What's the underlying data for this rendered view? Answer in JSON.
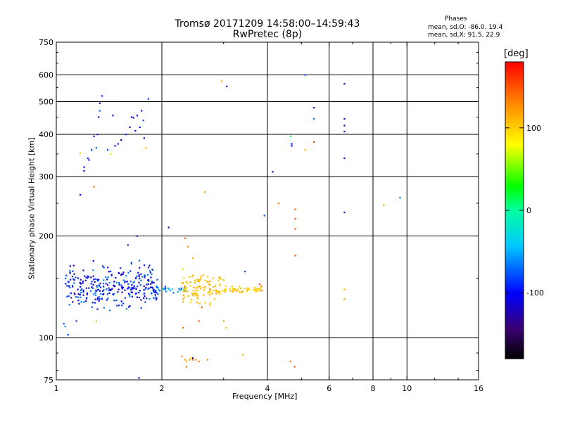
{
  "header": {
    "title_line1": "Tromsø 20171209 14:58:00–14:59:43",
    "title_line2": "RwPretec (8p)",
    "phase_title": "Phases",
    "phase_stat_1": "mean, sd,O: -86.0, 19.4",
    "phase_stat_2": "mean, sd,X:  91.5, 22.9"
  },
  "colorbar": {
    "label": "[deg]",
    "range": [
      -180,
      180
    ],
    "tick_values": [
      100,
      0,
      -100
    ],
    "tick_labels": [
      "100",
      "0",
      "-100"
    ]
  },
  "chart_data": {
    "type": "scatter",
    "title": "Tromsø 20171209 14:58:00–14:59:43",
    "subtitle": "RwPretec (8p)",
    "xlabel": "Frequency [MHz]",
    "ylabel": "Stationary phase Virtual Height [km]",
    "x_scale": "log",
    "y_scale": "log",
    "xlim": [
      1,
      16
    ],
    "ylim": [
      75,
      750
    ],
    "x_ticks": [
      1,
      2,
      4,
      6,
      8,
      10,
      16
    ],
    "x_tick_labels": [
      "1",
      "2",
      "4",
      "6",
      "8",
      "10",
      "16"
    ],
    "y_ticks": [
      75,
      100,
      200,
      300,
      400,
      500,
      600,
      750
    ],
    "y_tick_labels": [
      "75",
      "100",
      "200",
      "300",
      "400",
      "500",
      "600",
      "750"
    ],
    "grid_x": [
      2,
      4,
      6,
      8,
      10
    ],
    "grid_y": [
      100,
      200,
      300,
      400,
      500,
      600
    ],
    "legend": "colorbar-right",
    "colorscale": "rainbow",
    "points": [
      {
        "x": 1.08,
        "y": 102,
        "phase": -80
      },
      {
        "x": 1.06,
        "y": 108,
        "phase": -60
      },
      {
        "x": 1.05,
        "y": 110,
        "phase": -80
      },
      {
        "x": 1.14,
        "y": 112,
        "phase": -90
      },
      {
        "x": 1.3,
        "y": 112,
        "phase": 110
      },
      {
        "x": 1.17,
        "y": 265,
        "phase": -100
      },
      {
        "x": 1.28,
        "y": 280,
        "phase": 140
      },
      {
        "x": 1.17,
        "y": 352,
        "phase": 100
      },
      {
        "x": 1.2,
        "y": 320,
        "phase": -100
      },
      {
        "x": 1.2,
        "y": 312,
        "phase": -110
      },
      {
        "x": 1.23,
        "y": 340,
        "phase": -90
      },
      {
        "x": 1.24,
        "y": 336,
        "phase": -100
      },
      {
        "x": 1.26,
        "y": 360,
        "phase": -85
      },
      {
        "x": 1.28,
        "y": 395,
        "phase": -110
      },
      {
        "x": 1.3,
        "y": 365,
        "phase": -75
      },
      {
        "x": 1.31,
        "y": 400,
        "phase": -100
      },
      {
        "x": 1.32,
        "y": 450,
        "phase": -100
      },
      {
        "x": 1.33,
        "y": 470,
        "phase": -70
      },
      {
        "x": 1.33,
        "y": 495,
        "phase": -110
      },
      {
        "x": 1.35,
        "y": 520,
        "phase": -90
      },
      {
        "x": 1.4,
        "y": 360,
        "phase": -80
      },
      {
        "x": 1.43,
        "y": 350,
        "phase": 90
      },
      {
        "x": 1.45,
        "y": 455,
        "phase": -110
      },
      {
        "x": 1.47,
        "y": 370,
        "phase": -100
      },
      {
        "x": 1.5,
        "y": 375,
        "phase": -90
      },
      {
        "x": 1.53,
        "y": 385,
        "phase": -100
      },
      {
        "x": 1.58,
        "y": 400,
        "phase": -90
      },
      {
        "x": 1.62,
        "y": 420,
        "phase": -100
      },
      {
        "x": 1.64,
        "y": 450,
        "phase": -110
      },
      {
        "x": 1.66,
        "y": 448,
        "phase": -115
      },
      {
        "x": 1.68,
        "y": 410,
        "phase": -100
      },
      {
        "x": 1.7,
        "y": 455,
        "phase": -100
      },
      {
        "x": 1.73,
        "y": 420,
        "phase": -105
      },
      {
        "x": 1.75,
        "y": 470,
        "phase": -110
      },
      {
        "x": 1.77,
        "y": 440,
        "phase": -80
      },
      {
        "x": 1.78,
        "y": 390,
        "phase": -110
      },
      {
        "x": 1.8,
        "y": 365,
        "phase": 110
      },
      {
        "x": 1.83,
        "y": 510,
        "phase": -90
      },
      {
        "x": 1.7,
        "y": 200,
        "phase": -110
      },
      {
        "x": 1.6,
        "y": 188,
        "phase": -90
      },
      {
        "x": 2.09,
        "y": 212,
        "phase": -110
      },
      {
        "x": 1.72,
        "y": 76,
        "phase": -110
      },
      {
        "x": 2.96,
        "y": 575,
        "phase": 110
      },
      {
        "x": 3.06,
        "y": 555,
        "phase": -110
      },
      {
        "x": 2.65,
        "y": 270,
        "phase": 120
      },
      {
        "x": 3.92,
        "y": 230,
        "phase": -80
      },
      {
        "x": 4.14,
        "y": 310,
        "phase": -110
      },
      {
        "x": 4.3,
        "y": 250,
        "phase": 130
      },
      {
        "x": 4.66,
        "y": 395,
        "phase": 20
      },
      {
        "x": 4.69,
        "y": 370,
        "phase": -100
      },
      {
        "x": 4.69,
        "y": 375,
        "phase": -90
      },
      {
        "x": 4.8,
        "y": 240,
        "phase": 150
      },
      {
        "x": 4.8,
        "y": 225,
        "phase": 150
      },
      {
        "x": 4.8,
        "y": 210,
        "phase": 150
      },
      {
        "x": 4.8,
        "y": 175,
        "phase": 150
      },
      {
        "x": 5.12,
        "y": 600,
        "phase": -80
      },
      {
        "x": 5.12,
        "y": 360,
        "phase": 110
      },
      {
        "x": 5.43,
        "y": 480,
        "phase": -120
      },
      {
        "x": 5.43,
        "y": 445,
        "phase": -70
      },
      {
        "x": 5.43,
        "y": 380,
        "phase": 150
      },
      {
        "x": 6.63,
        "y": 565,
        "phase": -110
      },
      {
        "x": 6.63,
        "y": 445,
        "phase": -110
      },
      {
        "x": 6.63,
        "y": 425,
        "phase": -120
      },
      {
        "x": 6.63,
        "y": 408,
        "phase": -120
      },
      {
        "x": 6.63,
        "y": 340,
        "phase": -100
      },
      {
        "x": 6.63,
        "y": 235,
        "phase": -120
      },
      {
        "x": 6.63,
        "y": 139,
        "phase": 110
      },
      {
        "x": 6.63,
        "y": 130,
        "phase": 120
      },
      {
        "x": 8.58,
        "y": 247,
        "phase": 120
      },
      {
        "x": 9.55,
        "y": 260,
        "phase": -70
      },
      {
        "x": 3.45,
        "y": 157,
        "phase": -80
      },
      {
        "x": 2.33,
        "y": 197,
        "phase": 140
      },
      {
        "x": 2.37,
        "y": 186,
        "phase": 130
      },
      {
        "x": 2.45,
        "y": 172,
        "phase": 110
      },
      {
        "x": 2.6,
        "y": 123,
        "phase": 150
      },
      {
        "x": 2.3,
        "y": 107,
        "phase": 140
      },
      {
        "x": 2.55,
        "y": 112,
        "phase": 150
      },
      {
        "x": 3.0,
        "y": 112,
        "phase": 120
      },
      {
        "x": 3.05,
        "y": 107,
        "phase": 110
      },
      {
        "x": 2.28,
        "y": 88,
        "phase": 130
      },
      {
        "x": 2.33,
        "y": 86,
        "phase": 120
      },
      {
        "x": 2.35,
        "y": 85,
        "phase": 110
      },
      {
        "x": 2.4,
        "y": 86,
        "phase": 120
      },
      {
        "x": 2.42,
        "y": 87,
        "phase": 100
      },
      {
        "x": 2.45,
        "y": 86,
        "phase": 140
      },
      {
        "x": 2.45,
        "y": 87,
        "phase": -120
      },
      {
        "x": 2.5,
        "y": 86,
        "phase": 130
      },
      {
        "x": 2.55,
        "y": 85,
        "phase": 140
      },
      {
        "x": 2.7,
        "y": 86,
        "phase": 130
      },
      {
        "x": 2.35,
        "y": 82,
        "phase": 140
      },
      {
        "x": 3.4,
        "y": 89,
        "phase": 110
      },
      {
        "x": 4.65,
        "y": 85,
        "phase": 140
      },
      {
        "x": 4.78,
        "y": 82,
        "phase": 150
      },
      {
        "x": 3.8,
        "y": 144,
        "phase": 150
      },
      {
        "x": 3.84,
        "y": 142,
        "phase": 130
      },
      {
        "x": 3.85,
        "y": 138,
        "phase": 140
      },
      {
        "x": 2.8,
        "y": 150,
        "phase": 110
      },
      {
        "x": 3.0,
        "y": 148,
        "phase": 110
      }
    ],
    "clusters": [
      {
        "x_range": [
          1.06,
          1.95
        ],
        "y_range": [
          122,
          165
        ],
        "phase": -95,
        "spread": 35,
        "count": 300
      },
      {
        "x_range": [
          1.9,
          2.35
        ],
        "y_range": [
          136,
          142
        ],
        "phase": -55,
        "spread": 25,
        "count": 30
      },
      {
        "x_range": [
          2.28,
          2.95
        ],
        "y_range": [
          126,
          155
        ],
        "phase": 105,
        "spread": 12,
        "count": 110
      },
      {
        "x_range": [
          2.95,
          3.85
        ],
        "y_range": [
          136,
          142
        ],
        "phase": 100,
        "spread": 10,
        "count": 55
      }
    ]
  }
}
